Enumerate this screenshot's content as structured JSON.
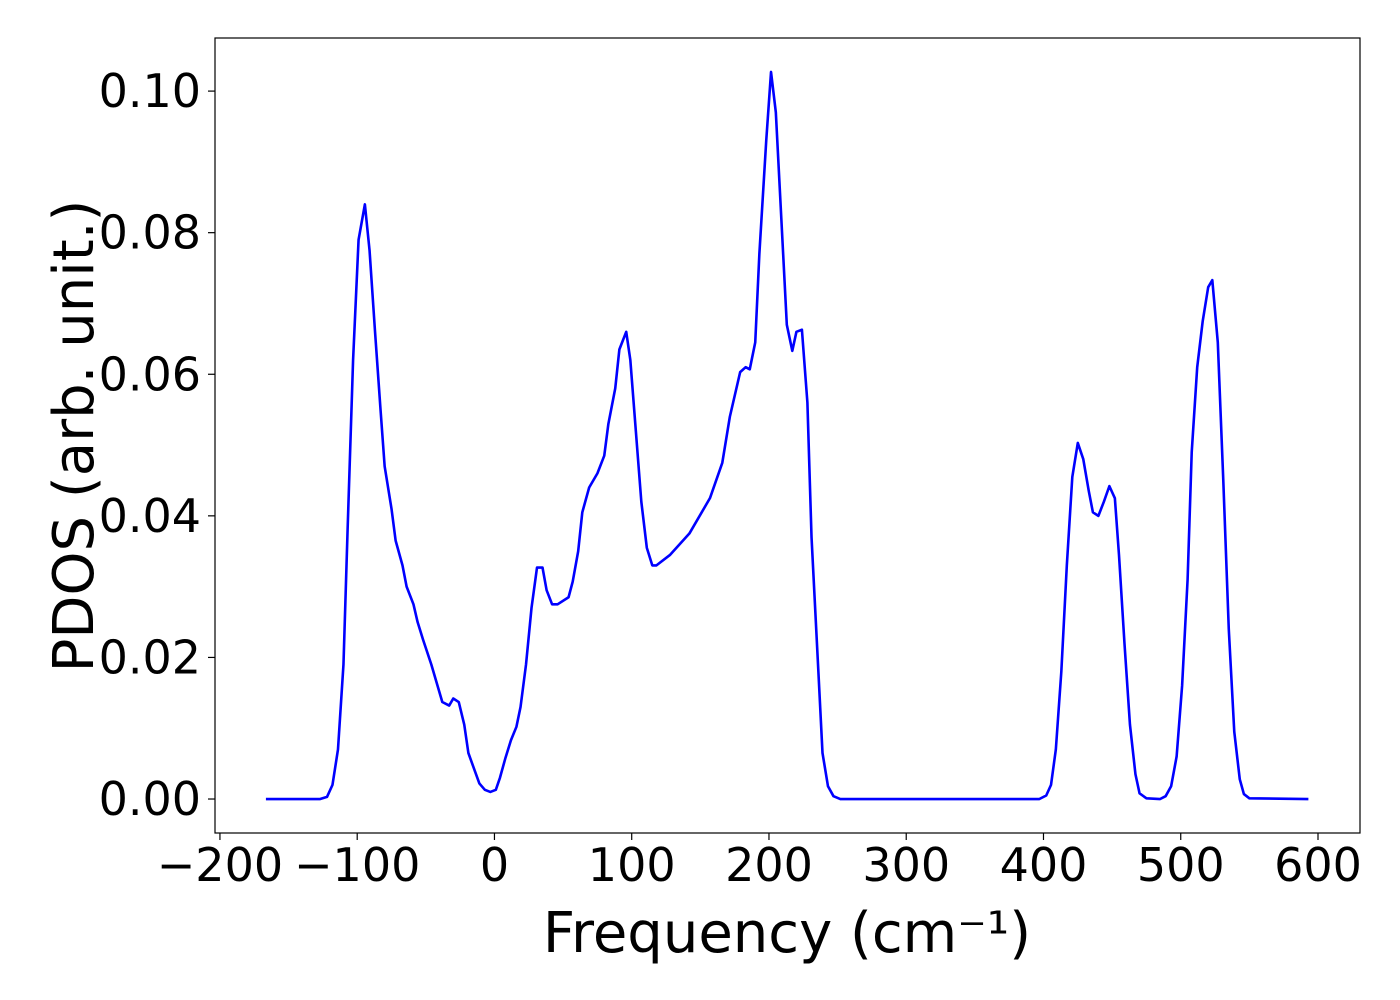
{
  "chart_data": {
    "type": "line",
    "xlabel": "Frequency (cm⁻¹)",
    "ylabel": "PDOS (arb. unit.)",
    "color": "#0000ff",
    "grid": false,
    "xlim": [
      -203.6,
      630.6
    ],
    "ylim": [
      -0.0048,
      0.1075
    ],
    "xticks": [
      {
        "value": -200,
        "label": "−200"
      },
      {
        "value": -100,
        "label": "−100"
      },
      0,
      100,
      200,
      300,
      400,
      500,
      600
    ],
    "yticks": [
      {
        "value": 0,
        "label": "0.00"
      },
      {
        "value": 0.02,
        "label": "0.02"
      },
      {
        "value": 0.04,
        "label": "0.04"
      },
      {
        "value": 0.06,
        "label": "0.06"
      },
      {
        "value": 0.08,
        "label": "0.08"
      },
      {
        "value": 0.1,
        "label": "0.10"
      }
    ],
    "x": [
      -166.5,
      -127,
      -122,
      -118,
      -114,
      -110,
      -107,
      -103,
      -99,
      -94.4,
      -91,
      -87,
      -83,
      -80,
      -75,
      -72,
      -67,
      -64,
      -59,
      -56,
      -52,
      -46,
      -38,
      -33,
      -30,
      -26,
      -22,
      -19,
      -14,
      -11,
      -7,
      -3,
      1,
      4,
      8,
      12,
      16,
      19,
      23,
      27,
      31,
      35,
      38,
      42,
      46,
      54,
      57,
      61,
      64,
      69,
      75,
      80,
      83,
      88,
      91,
      96,
      99,
      103,
      107,
      111,
      115,
      118,
      128,
      142,
      157,
      166,
      171.5,
      179,
      183,
      186,
      190,
      193,
      198,
      201.5,
      205,
      209,
      213,
      217,
      220,
      224,
      228,
      231,
      236,
      239,
      243,
      247,
      252,
      397,
      402,
      405.5,
      409,
      413,
      417,
      421,
      425,
      429,
      433,
      436,
      440,
      444,
      448,
      452,
      455,
      459,
      463,
      467,
      470,
      475,
      485,
      489,
      493,
      497,
      501,
      505,
      508,
      512,
      516,
      520,
      523,
      527,
      531,
      535,
      539,
      543,
      546,
      550,
      593
    ],
    "values": [
      0,
      0,
      0.0003,
      0.002,
      0.007,
      0.019,
      0.038,
      0.062,
      0.079,
      0.084,
      0.0775,
      0.066,
      0.055,
      0.047,
      0.041,
      0.0365,
      0.033,
      0.03,
      0.0275,
      0.025,
      0.0225,
      0.019,
      0.0137,
      0.0132,
      0.0142,
      0.0137,
      0.0105,
      0.0065,
      0.0038,
      0.0022,
      0.0013,
      0.001,
      0.0013,
      0.003,
      0.0058,
      0.0083,
      0.0102,
      0.013,
      0.019,
      0.027,
      0.0327,
      0.0327,
      0.0295,
      0.0275,
      0.0275,
      0.0285,
      0.0307,
      0.035,
      0.0405,
      0.044,
      0.046,
      0.0485,
      0.053,
      0.058,
      0.0635,
      0.066,
      0.062,
      0.052,
      0.042,
      0.0355,
      0.033,
      0.033,
      0.0345,
      0.0375,
      0.0425,
      0.0475,
      0.054,
      0.0603,
      0.061,
      0.0607,
      0.0645,
      0.077,
      0.093,
      0.1027,
      0.097,
      0.082,
      0.067,
      0.0633,
      0.066,
      0.0663,
      0.056,
      0.037,
      0.018,
      0.0065,
      0.0018,
      0.0004,
      0,
      0,
      0.0005,
      0.002,
      0.007,
      0.018,
      0.033,
      0.0455,
      0.0503,
      0.048,
      0.0435,
      0.0405,
      0.04,
      0.042,
      0.0442,
      0.0425,
      0.0345,
      0.022,
      0.0105,
      0.0035,
      0.0008,
      0.0001,
      0,
      0.0004,
      0.0018,
      0.006,
      0.016,
      0.031,
      0.049,
      0.061,
      0.0675,
      0.0723,
      0.0733,
      0.0645,
      0.045,
      0.024,
      0.0095,
      0.0028,
      0.0007,
      0.0001,
      0
    ]
  }
}
